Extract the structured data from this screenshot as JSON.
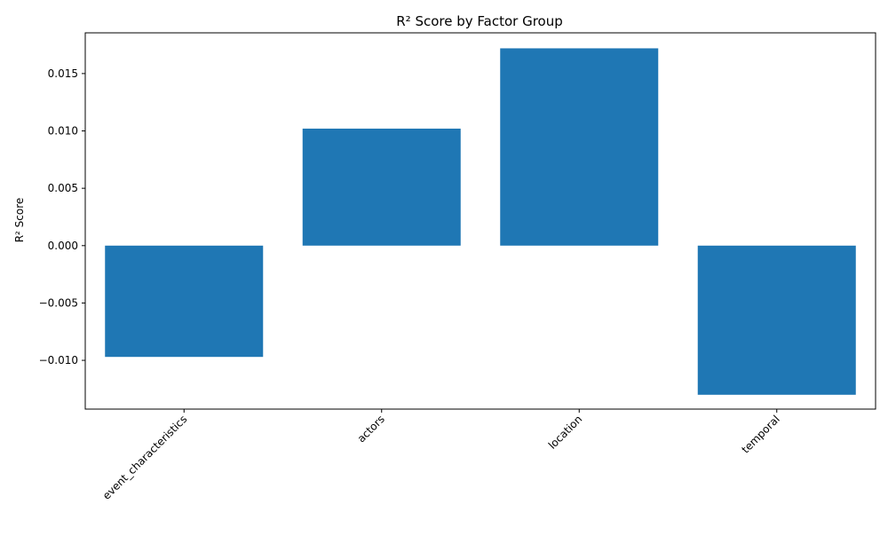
{
  "chart_data": {
    "type": "bar",
    "title": "R² Score by Factor Group",
    "xlabel": "",
    "ylabel": "R² Score",
    "categories": [
      "event_characteristics",
      "actors",
      "location",
      "temporal"
    ],
    "values": [
      -0.0097,
      0.0102,
      0.0172,
      -0.013
    ],
    "ylim": [
      -0.01425,
      0.01855
    ],
    "yticks": [
      -0.01,
      -0.005,
      0.0,
      0.005,
      0.01,
      0.015
    ],
    "ytick_labels": [
      "−0.010",
      "−0.005",
      "0.000",
      "0.005",
      "0.010",
      "0.015"
    ],
    "bar_color": "#1f77b4",
    "grid": false,
    "legend": false
  }
}
